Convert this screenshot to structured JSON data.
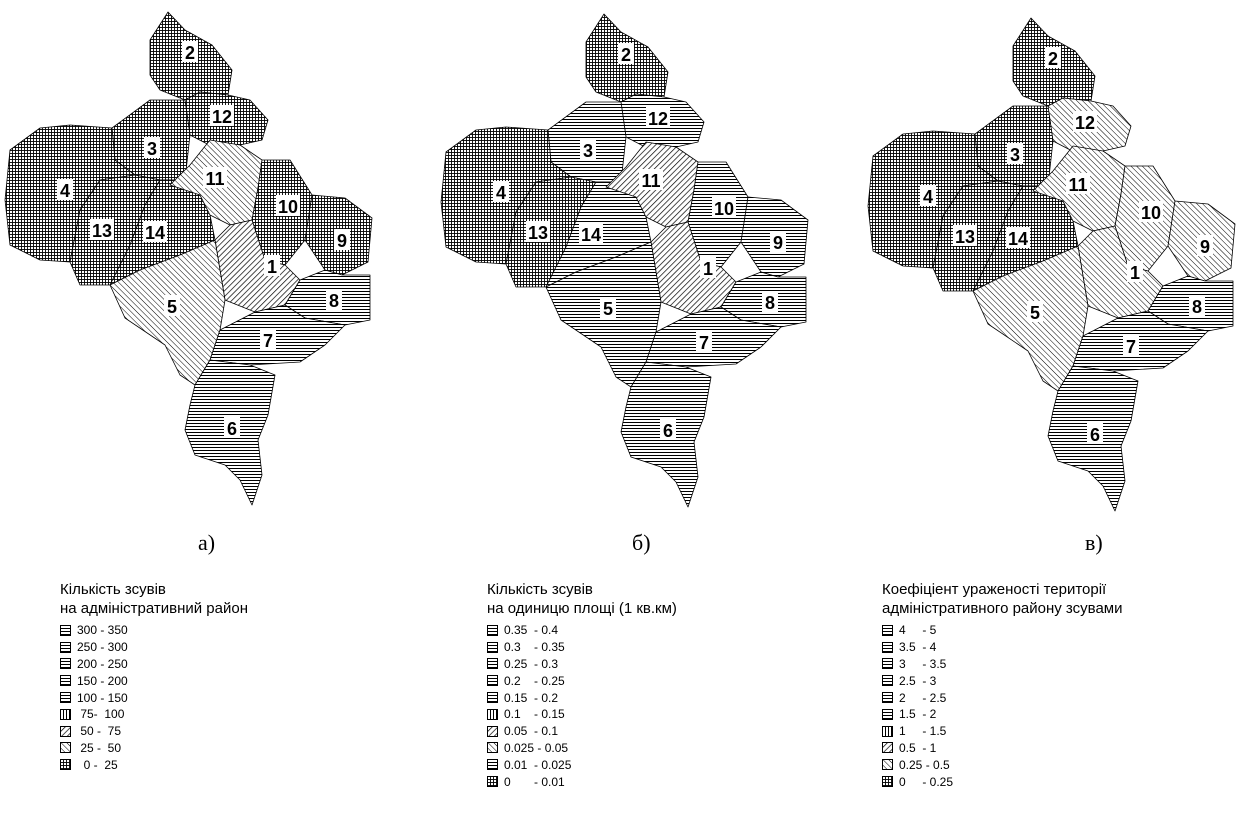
{
  "maps": [
    {
      "caption": "а)",
      "legend_title": [
        "Кількість зсувів",
        "на адміністративний район"
      ],
      "legend": [
        {
          "label": "300 - 350",
          "pattern": "hlines"
        },
        {
          "label": "250 - 300",
          "pattern": "hlines"
        },
        {
          "label": "200 - 250",
          "pattern": "hlines"
        },
        {
          "label": "150 - 200",
          "pattern": "hlines"
        },
        {
          "label": "100 - 150",
          "pattern": "hlines"
        },
        {
          "label": " 75-  100",
          "pattern": "vlines"
        },
        {
          "label": " 50 -  75",
          "pattern": "diag-fwd"
        },
        {
          "label": " 25 -  50",
          "pattern": "diag-back"
        },
        {
          "label": "  0 -  25",
          "pattern": "grid"
        }
      ],
      "districts": [
        {
          "id": "2",
          "pattern": "grid"
        },
        {
          "id": "12",
          "pattern": "grid"
        },
        {
          "id": "3",
          "pattern": "grid"
        },
        {
          "id": "4",
          "pattern": "grid"
        },
        {
          "id": "13",
          "pattern": "grid"
        },
        {
          "id": "14",
          "pattern": "grid"
        },
        {
          "id": "11",
          "pattern": "diag-back"
        },
        {
          "id": "10",
          "pattern": "grid"
        },
        {
          "id": "9",
          "pattern": "grid"
        },
        {
          "id": "1",
          "pattern": "diag-fwd"
        },
        {
          "id": "5",
          "pattern": "diag-back"
        },
        {
          "id": "8",
          "pattern": "hlines"
        },
        {
          "id": "7",
          "pattern": "hlines"
        },
        {
          "id": "6",
          "pattern": "hlines"
        }
      ]
    },
    {
      "caption": "б)",
      "legend_title": [
        "Кількість зсувів",
        "на одиницю площі (1 кв.км)"
      ],
      "legend": [
        {
          "label": "0.35  - 0.4",
          "pattern": "hlines"
        },
        {
          "label": "0.3    - 0.35",
          "pattern": "hlines"
        },
        {
          "label": "0.25  - 0.3",
          "pattern": "hlines"
        },
        {
          "label": "0.2    - 0.25",
          "pattern": "hlines"
        },
        {
          "label": "0.15  - 0.2",
          "pattern": "hlines"
        },
        {
          "label": "0.1    - 0.15",
          "pattern": "vlines"
        },
        {
          "label": "0.05  - 0.1",
          "pattern": "diag-fwd"
        },
        {
          "label": "0.025 - 0.05",
          "pattern": "diag-back"
        },
        {
          "label": "0.01  - 0.025",
          "pattern": "hlines"
        },
        {
          "label": "0       - 0.01",
          "pattern": "grid"
        }
      ],
      "districts": [
        {
          "id": "2",
          "pattern": "grid"
        },
        {
          "id": "12",
          "pattern": "hlines"
        },
        {
          "id": "3",
          "pattern": "hlines"
        },
        {
          "id": "4",
          "pattern": "grid"
        },
        {
          "id": "13",
          "pattern": "grid"
        },
        {
          "id": "14",
          "pattern": "hlines"
        },
        {
          "id": "11",
          "pattern": "diag-fwd"
        },
        {
          "id": "10",
          "pattern": "hlines"
        },
        {
          "id": "9",
          "pattern": "hlines"
        },
        {
          "id": "1",
          "pattern": "diag-fwd"
        },
        {
          "id": "5",
          "pattern": "hlines"
        },
        {
          "id": "8",
          "pattern": "hlines"
        },
        {
          "id": "7",
          "pattern": "hlines"
        },
        {
          "id": "6",
          "pattern": "hlines"
        }
      ]
    },
    {
      "caption": "в)",
      "legend_title": [
        "Коефіціент ураженості території",
        "адміністративного району зсувами"
      ],
      "legend": [
        {
          "label": "4     - 5",
          "pattern": "hlines"
        },
        {
          "label": "3.5  - 4",
          "pattern": "hlines"
        },
        {
          "label": "3     - 3.5",
          "pattern": "hlines"
        },
        {
          "label": "2.5  - 3",
          "pattern": "hlines"
        },
        {
          "label": "2     - 2.5",
          "pattern": "hlines"
        },
        {
          "label": "1.5  - 2",
          "pattern": "hlines"
        },
        {
          "label": "1     - 1.5",
          "pattern": "vlines"
        },
        {
          "label": "0.5  - 1",
          "pattern": "diag-fwd"
        },
        {
          "label": "0.25 - 0.5",
          "pattern": "diag-back"
        },
        {
          "label": "0     - 0.25",
          "pattern": "grid"
        }
      ],
      "districts": [
        {
          "id": "2",
          "pattern": "grid"
        },
        {
          "id": "12",
          "pattern": "diag-back"
        },
        {
          "id": "3",
          "pattern": "grid"
        },
        {
          "id": "4",
          "pattern": "grid"
        },
        {
          "id": "13",
          "pattern": "grid"
        },
        {
          "id": "14",
          "pattern": "grid"
        },
        {
          "id": "11",
          "pattern": "diag-back"
        },
        {
          "id": "10",
          "pattern": "diag-back"
        },
        {
          "id": "9",
          "pattern": "diag-back"
        },
        {
          "id": "1",
          "pattern": "diag-back"
        },
        {
          "id": "5",
          "pattern": "diag-back"
        },
        {
          "id": "8",
          "pattern": "hlines"
        },
        {
          "id": "7",
          "pattern": "hlines"
        },
        {
          "id": "6",
          "pattern": "hlines"
        }
      ]
    }
  ]
}
